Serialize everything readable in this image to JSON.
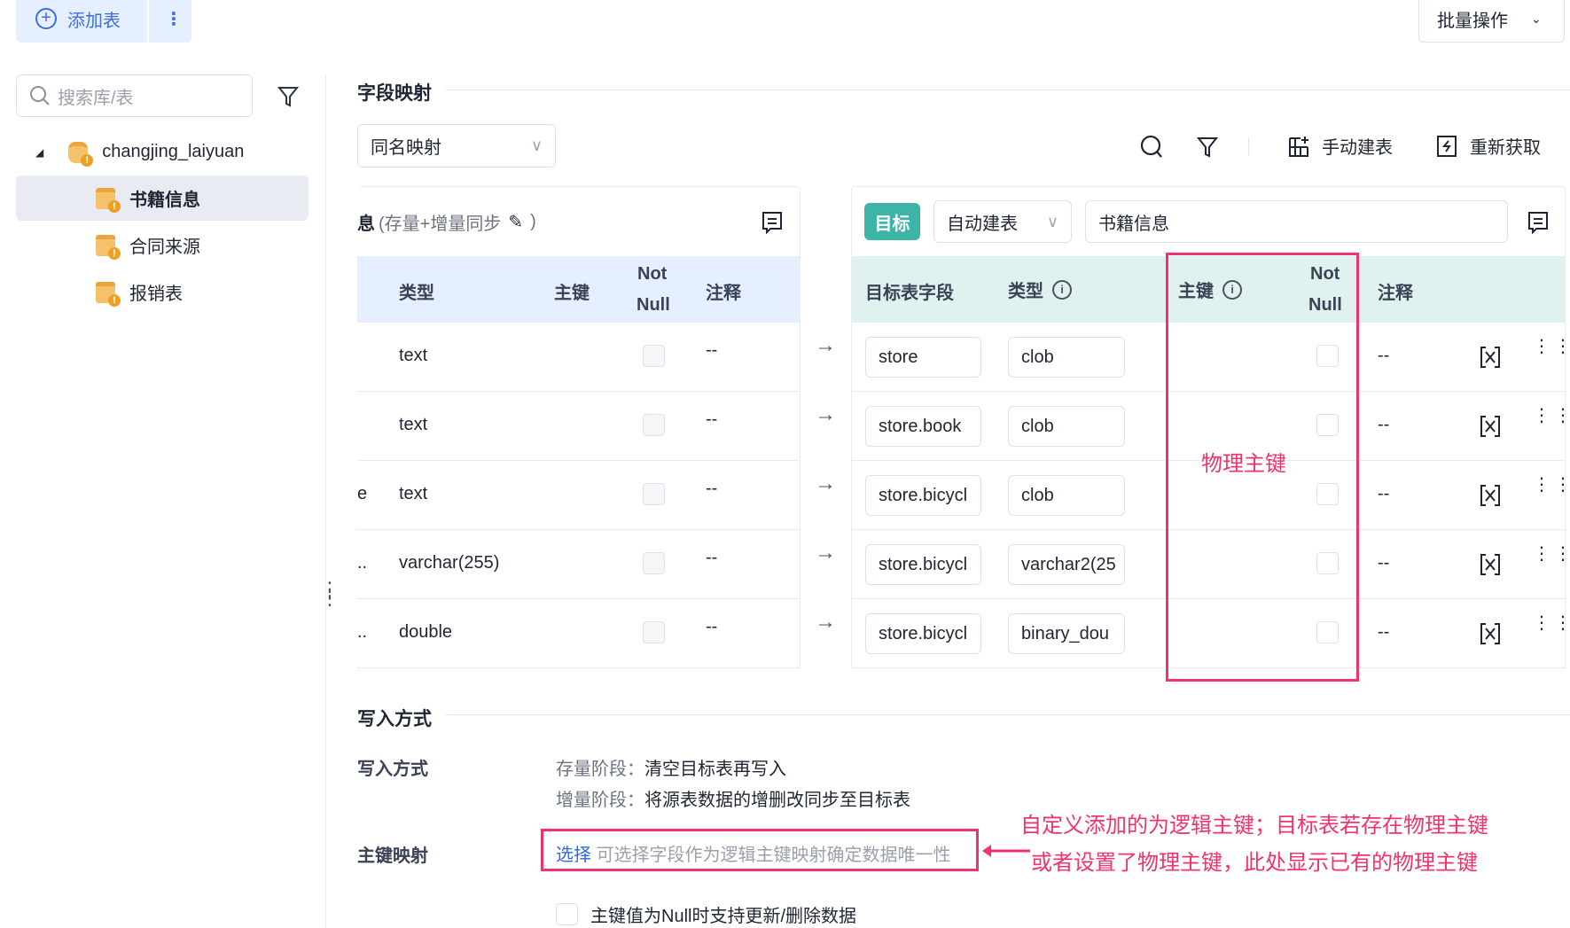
{
  "top": {
    "add_table": "添加表",
    "more": "⋮",
    "batch": "批量操作"
  },
  "sidebar": {
    "search_placeholder": "搜索库/表",
    "db": "changjing_laiyuan",
    "items": [
      {
        "label": "书籍信息",
        "selected": true
      },
      {
        "label": "合同来源"
      },
      {
        "label": "报销表"
      }
    ]
  },
  "field_mapping": {
    "title": "字段映射",
    "mapping_mode": "同名映射",
    "manual_create": "手动建表",
    "refetch": "重新获取"
  },
  "source": {
    "title_suffix": "息",
    "sync": "(存量+增量同步",
    "close_paren": ")",
    "headers": {
      "type": "类型",
      "pk": "主键",
      "notnull_1": "Not",
      "notnull_2": "Null",
      "comment": "注释"
    },
    "rows": [
      {
        "lead": "",
        "type": "text",
        "comment": "--"
      },
      {
        "lead": "",
        "type": "text",
        "comment": "--"
      },
      {
        "lead": "e",
        "type": "text",
        "comment": "--"
      },
      {
        "lead": "..",
        "type": "varchar(255)",
        "comment": "--"
      },
      {
        "lead": "..",
        "type": "double",
        "comment": "--"
      }
    ]
  },
  "target": {
    "tag": "目标",
    "create_mode": "自动建表",
    "table_name": "书籍信息",
    "tag_color": "#3db5a6",
    "headers": {
      "field": "目标表字段",
      "type": "类型",
      "pk": "主键",
      "notnull_1": "Not",
      "notnull_2": "Null",
      "comment": "注释"
    },
    "rows": [
      {
        "field": "store",
        "type": "clob",
        "comment": "--"
      },
      {
        "field": "store.book",
        "type": "clob",
        "comment": "--"
      },
      {
        "field": "store.bicycl",
        "type": "clob",
        "comment": "--"
      },
      {
        "field": "store.bicycl",
        "type": "varchar2(25",
        "comment": "--"
      },
      {
        "field": "store.bicycl",
        "type": "binary_dou",
        "comment": "--"
      }
    ]
  },
  "annotations": {
    "physical_pk": "物理主键",
    "line1": "自定义添加的为逻辑主键；目标表若存在物理主键",
    "line2": "或者设置了物理主键，此处显示已有的物理主键",
    "color": "#f0336b"
  },
  "write": {
    "title": "写入方式",
    "label": "写入方式",
    "stock_label": "存量阶段：",
    "stock_value": "清空目标表再写入",
    "incr_label": "增量阶段：",
    "incr_value": "将源表数据的增删改同步至目标表",
    "pk_label": "主键映射",
    "select": "选择",
    "pk_hint": "可选择字段作为逻辑主键映射确定数据唯一性",
    "null_option": "主键值为Null时支持更新/删除数据"
  }
}
